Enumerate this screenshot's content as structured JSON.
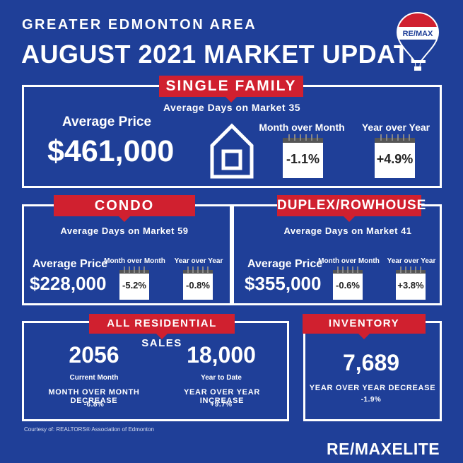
{
  "header": {
    "area": "GREATER EDMONTON AREA",
    "title": "AUGUST 2021 MARKET UPDATE",
    "logo_text": "RE/MAX"
  },
  "single_family": {
    "label": "SINGLE FAMILY",
    "days": "Average Days on Market 35",
    "avg_label": "Average Price",
    "price": "$461,000",
    "mom_label": "Month over Month",
    "mom": "-1.1%",
    "yoy_label": "Year over Year",
    "yoy": "+4.9%"
  },
  "condo": {
    "label": "CONDO",
    "days": "Average Days on Market 59",
    "avg_label": "Average Price",
    "price": "$228,000",
    "mom_label": "Month over Month",
    "mom": "-5.2%",
    "yoy_label": "Year over Year",
    "yoy": "-0.8%"
  },
  "duplex": {
    "label": "DUPLEX/ROWHOUSE",
    "days": "Average Days on Market 41",
    "avg_label": "Average Price",
    "price": "$355,000",
    "mom_label": "Month over Month",
    "mom": "-0.6%",
    "yoy_label": "Year over Year",
    "yoy": "+3.8%"
  },
  "sales": {
    "label": "ALL RESIDENTIAL SALES",
    "current_value": "2056",
    "current_label": "Current Month",
    "mom_desc": "MONTH OVER MONTH DECREASE",
    "mom_value": "-6.8%",
    "ytd_value": "18,000",
    "ytd_label": "Year to Date",
    "yoy_desc": "YEAR OVER YEAR INCREASE",
    "yoy_value": "+9.7%"
  },
  "inventory": {
    "label": "INVENTORY",
    "value": "7,689",
    "desc": "YEAR OVER YEAR DECREASE",
    "change": "-1.9%"
  },
  "footer": {
    "courtesy": "Courtesy of:  REALTORS® Association of Edmonton",
    "brand": "RE/MAXELITE"
  },
  "colors": {
    "background": "#1f3f98",
    "accent": "#d0202f",
    "text": "#ffffff"
  }
}
